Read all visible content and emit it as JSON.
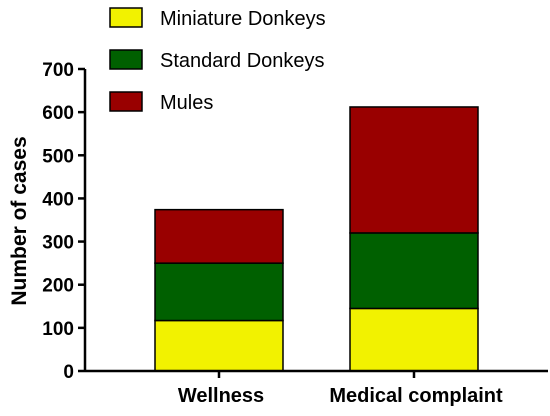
{
  "chart_data": {
    "type": "bar",
    "stacked": true,
    "categories": [
      "Wellness",
      "Medical complaint"
    ],
    "series": [
      {
        "name": "Miniature Donkeys",
        "color": "#f2f200",
        "values": [
          117,
          145
        ]
      },
      {
        "name": "Standard Donkeys",
        "color": "#006000",
        "values": [
          133,
          175
        ]
      },
      {
        "name": "Mules",
        "color": "#990000",
        "values": [
          124,
          292
        ]
      }
    ],
    "title": "",
    "xlabel": "",
    "ylabel": "Number of cases",
    "ylim": [
      0,
      700
    ],
    "yticks": [
      0,
      100,
      200,
      300,
      400,
      500,
      600,
      700
    ],
    "grid": false,
    "legend_position": "top-center"
  }
}
